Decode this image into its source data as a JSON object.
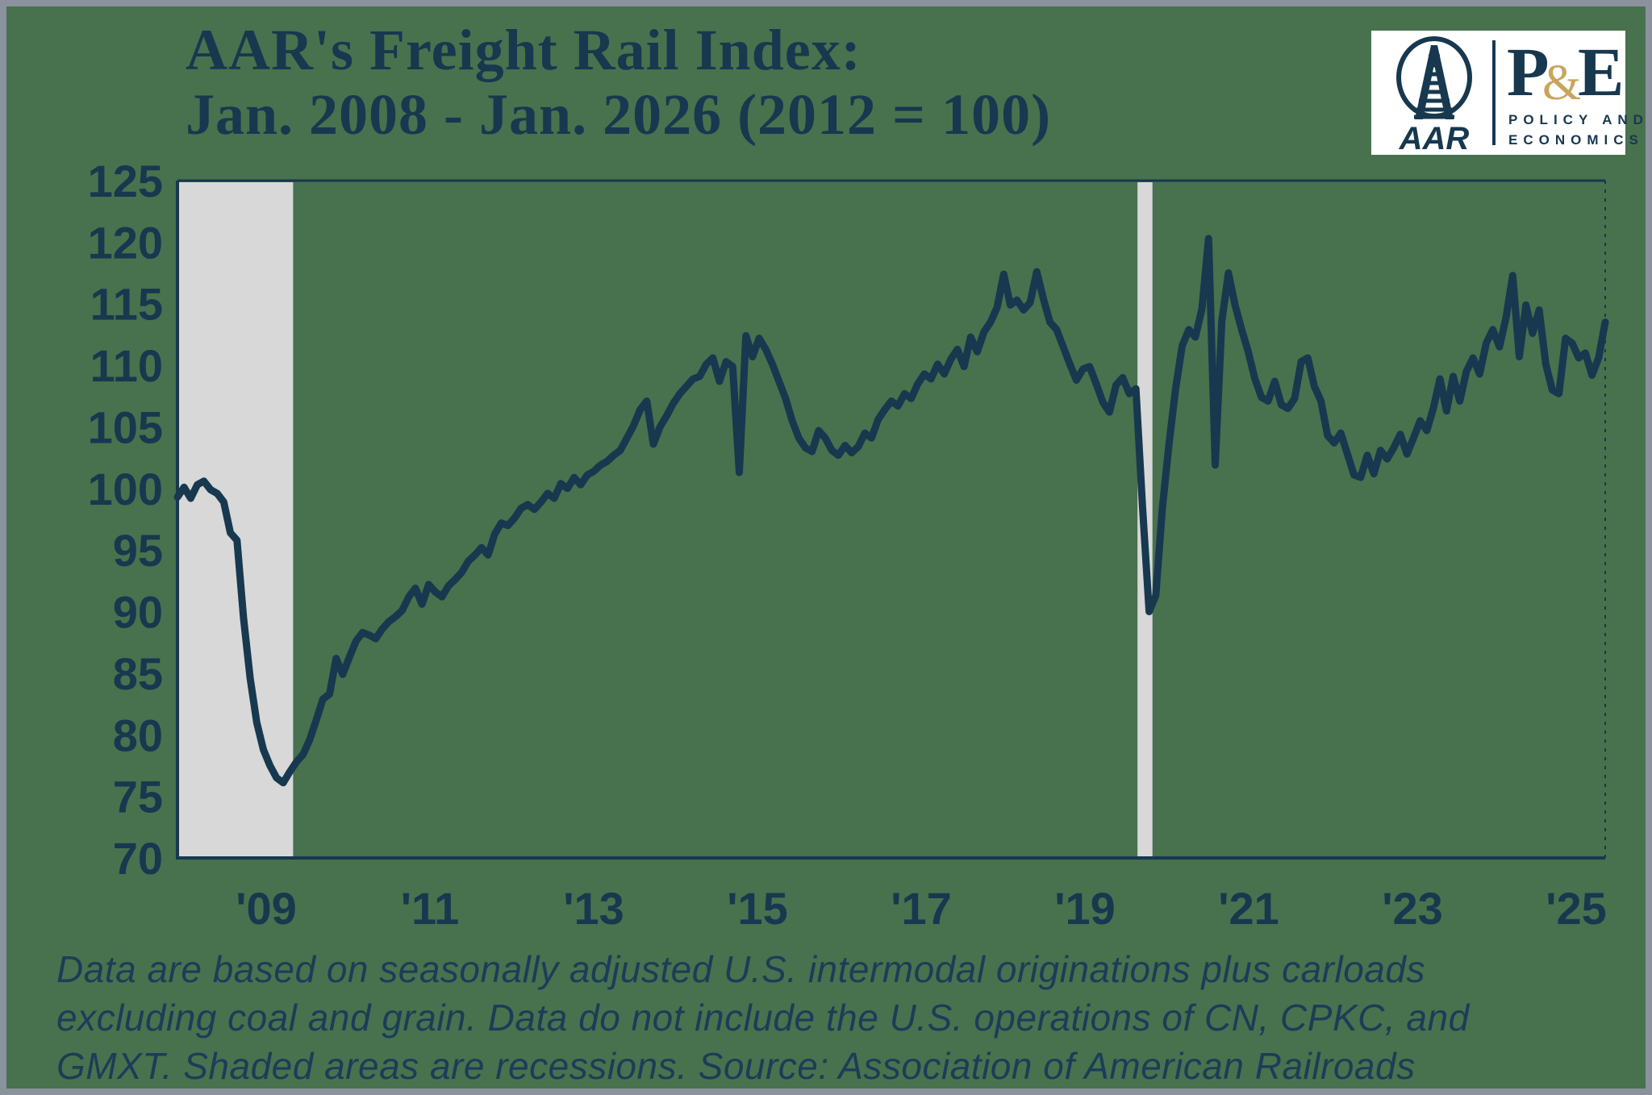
{
  "title": {
    "line1": "AAR's Freight Rail Index:",
    "line2": "Jan. 2008 - Jan. 2026 (2012 = 100)"
  },
  "logo": {
    "aar_wordmark": "AAR",
    "pe_p": "P",
    "pe_amp": "&",
    "pe_e": "E",
    "sub_line1": "POLICY AND",
    "sub_line2": "ECONOMICS"
  },
  "footer": {
    "lines": [
      "Data are based on seasonally adjusted U.S. intermodal originations plus carloads",
      "excluding coal and grain. Data do not include the U.S. operations of CN, CPKC, and",
      "GMXT. Shaded areas are recessions. Source: Association of American Railroads"
    ]
  },
  "colors": {
    "background_green": "#48714E",
    "frame_gray": "#8B929D",
    "navy": "#17384F",
    "recession_gray": "#D8D8D8",
    "gold_ampersand": "#C9A45C",
    "logo_white": "#FFFFFF"
  },
  "chart_data": {
    "type": "line",
    "title": "AAR's Freight Rail Index: Jan. 2008 - Jan. 2026 (2012 = 100)",
    "frequency": "monthly",
    "x_start": "2008-01",
    "x_end": "2026-01",
    "ylim": [
      70,
      125
    ],
    "yticks": [
      70,
      75,
      80,
      85,
      90,
      95,
      100,
      105,
      110,
      115,
      120,
      125
    ],
    "xtick_labels": [
      "'09",
      "'11",
      "'13",
      "'15",
      "'17",
      "'19",
      "'21",
      "'23",
      "'25"
    ],
    "grid": false,
    "legend": "none",
    "annotations": "Shaded areas are recessions",
    "recessions": [
      {
        "start": 2008.0,
        "end": 2009.458
      },
      {
        "start": 2020.083,
        "end": 2020.292
      }
    ],
    "series": [
      {
        "name": "Freight Rail Index (2012 = 100)",
        "values": [
          99.3,
          100.1,
          99.2,
          100.3,
          100.6,
          99.9,
          99.6,
          98.9,
          96.4,
          95.8,
          89.5,
          84.6,
          81.0,
          78.8,
          77.5,
          76.5,
          76.1,
          77.0,
          77.8,
          78.4,
          79.6,
          81.2,
          82.9,
          83.3,
          86.2,
          84.9,
          86.3,
          87.6,
          88.3,
          88.1,
          87.8,
          88.6,
          89.2,
          89.6,
          90.1,
          91.2,
          91.9,
          90.6,
          92.2,
          91.6,
          91.2,
          92.1,
          92.6,
          93.2,
          94.1,
          94.6,
          95.2,
          94.6,
          96.3,
          97.2,
          97.0,
          97.6,
          98.4,
          98.7,
          98.3,
          98.9,
          99.6,
          99.2,
          100.4,
          100.0,
          100.9,
          100.3,
          101.1,
          101.4,
          101.9,
          102.2,
          102.7,
          103.1,
          104.1,
          105.1,
          106.4,
          107.1,
          103.6,
          105.0,
          105.9,
          106.9,
          107.7,
          108.3,
          108.9,
          109.1,
          110.1,
          110.6,
          108.7,
          110.3,
          109.9,
          101.3,
          112.4,
          110.7,
          112.2,
          111.3,
          110.1,
          108.7,
          107.3,
          105.5,
          104.1,
          103.3,
          103.0,
          104.7,
          104.1,
          103.1,
          102.7,
          103.5,
          102.9,
          103.4,
          104.5,
          104.1,
          105.6,
          106.4,
          107.1,
          106.7,
          107.7,
          107.3,
          108.5,
          109.3,
          108.9,
          110.1,
          109.3,
          110.5,
          111.3,
          109.9,
          112.3,
          111.1,
          112.7,
          113.5,
          114.7,
          117.4,
          114.9,
          115.3,
          114.5,
          115.1,
          117.6,
          115.4,
          113.5,
          112.9,
          111.5,
          110.1,
          108.8,
          109.7,
          109.9,
          108.5,
          107.0,
          106.2,
          108.4,
          109.0,
          107.7,
          108.1,
          98.5,
          90.0,
          91.3,
          98.4,
          103.6,
          108.1,
          111.6,
          112.9,
          112.3,
          114.6,
          120.3,
          101.9,
          113.6,
          117.5,
          114.9,
          112.9,
          111.1,
          108.9,
          107.4,
          107.1,
          108.7,
          106.8,
          106.5,
          107.3,
          110.3,
          110.6,
          108.3,
          107.1,
          104.3,
          103.7,
          104.5,
          102.8,
          101.1,
          100.9,
          102.7,
          101.2,
          103.1,
          102.4,
          103.3,
          104.4,
          102.8,
          104.1,
          105.5,
          104.7,
          106.5,
          108.9,
          106.3,
          109.1,
          107.1,
          109.5,
          110.6,
          109.3,
          111.8,
          112.9,
          111.5,
          113.9,
          117.3,
          110.7,
          114.9,
          112.6,
          114.5,
          110.1,
          108.0,
          107.7,
          112.2,
          111.8,
          110.6,
          111.0,
          109.2,
          110.6,
          113.5
        ]
      }
    ]
  }
}
